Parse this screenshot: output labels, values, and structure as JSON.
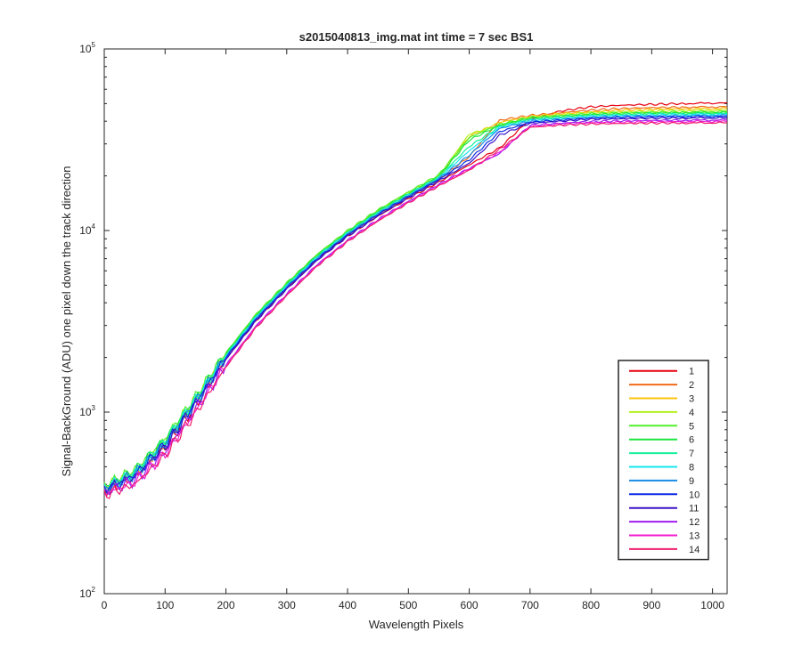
{
  "chart_data": {
    "type": "line",
    "title": "s2015040813_img.mat int time = 7 sec   BS1",
    "xlabel": "Wavelength Pixels",
    "ylabel": "Signal-BackGround (ADU) one pixel down the track direction",
    "xlim": [
      0,
      1024
    ],
    "ylim": [
      100,
      100000
    ],
    "yscale": "log",
    "grid": false,
    "legend_position": "bottom-right",
    "x_ticks": [
      "0",
      "100",
      "200",
      "300",
      "400",
      "500",
      "600",
      "700",
      "800",
      "900",
      "1000"
    ],
    "x_tick_values": [
      0,
      100,
      200,
      300,
      400,
      500,
      600,
      700,
      800,
      900,
      1000
    ],
    "y_ticks": [
      {
        "base": "10",
        "exp": "2",
        "value": 100
      },
      {
        "base": "10",
        "exp": "3",
        "value": 1000
      },
      {
        "base": "10",
        "exp": "4",
        "value": 10000
      },
      {
        "base": "10",
        "exp": "5",
        "value": 100000
      }
    ],
    "x": [
      0,
      50,
      100,
      150,
      200,
      250,
      300,
      350,
      400,
      450,
      500,
      550,
      600,
      650,
      700,
      750,
      800,
      850,
      900,
      950,
      1024
    ],
    "series": [
      {
        "name": "1",
        "color": "#e6000f",
        "values": [
          370,
          440,
          640,
          1100,
          1950,
          3200,
          4800,
          6900,
          9300,
          12000,
          15000,
          18500,
          23000,
          28500,
          41000,
          45500,
          48000,
          49000,
          49500,
          50000,
          50500
        ]
      },
      {
        "name": "2",
        "color": "#f06c1a",
        "values": [
          375,
          450,
          660,
          1130,
          2000,
          3300,
          4900,
          7050,
          9500,
          12300,
          15400,
          19100,
          25500,
          40500,
          43000,
          44500,
          46000,
          47000,
          47500,
          47800,
          48000
        ]
      },
      {
        "name": "3",
        "color": "#fac30c",
        "values": [
          380,
          460,
          680,
          1160,
          2050,
          3380,
          5000,
          7200,
          9700,
          12600,
          15800,
          19600,
          33000,
          39500,
          42500,
          44000,
          45000,
          46000,
          46500,
          46800,
          47000
        ]
      },
      {
        "name": "4",
        "color": "#b5f01f",
        "values": [
          385,
          470,
          700,
          1190,
          2100,
          3450,
          5100,
          7350,
          9900,
          12900,
          16200,
          20000,
          34000,
          38000,
          42000,
          43500,
          44500,
          45000,
          45500,
          45800,
          46000
        ]
      },
      {
        "name": "5",
        "color": "#52f02a",
        "values": [
          390,
          475,
          710,
          1200,
          2120,
          3480,
          5150,
          7400,
          10000,
          13000,
          16300,
          20300,
          32500,
          38500,
          42000,
          43000,
          44000,
          44500,
          44800,
          45000,
          45200
        ]
      },
      {
        "name": "6",
        "color": "#1ae63d",
        "values": [
          385,
          470,
          700,
          1185,
          2090,
          3430,
          5080,
          7300,
          9850,
          12800,
          16000,
          19900,
          31500,
          38000,
          41500,
          42500,
          43500,
          44000,
          44300,
          44500,
          44600
        ]
      },
      {
        "name": "7",
        "color": "#14f09c",
        "values": [
          380,
          465,
          690,
          1170,
          2060,
          3390,
          5020,
          7220,
          9750,
          12650,
          15850,
          19700,
          29000,
          37500,
          41000,
          42000,
          43000,
          43500,
          43800,
          44000,
          44100
        ]
      },
      {
        "name": "8",
        "color": "#14e6f0",
        "values": [
          378,
          460,
          680,
          1155,
          2040,
          3350,
          4960,
          7140,
          9650,
          12500,
          15700,
          19500,
          27500,
          37000,
          40500,
          41500,
          42500,
          43000,
          43200,
          43400,
          43500
        ]
      },
      {
        "name": "9",
        "color": "#1a8ce6",
        "values": [
          375,
          455,
          670,
          1140,
          2010,
          3300,
          4900,
          7050,
          9550,
          12380,
          15550,
          19300,
          26000,
          36500,
          40000,
          41000,
          42000,
          42500,
          42700,
          42900,
          43000
        ]
      },
      {
        "name": "10",
        "color": "#0a2ae6",
        "values": [
          372,
          450,
          660,
          1125,
          1990,
          3260,
          4840,
          6970,
          9450,
          12250,
          15400,
          19100,
          24500,
          35000,
          39500,
          40500,
          41500,
          42000,
          42200,
          42300,
          42400
        ]
      },
      {
        "name": "11",
        "color": "#3c14c8",
        "values": [
          368,
          440,
          645,
          1100,
          1950,
          3200,
          4750,
          6850,
          9300,
          12050,
          15150,
          18800,
          23500,
          33500,
          39000,
          40000,
          41000,
          41300,
          41500,
          41600,
          41700
        ]
      },
      {
        "name": "12",
        "color": "#a01ef0",
        "values": [
          360,
          420,
          600,
          1030,
          1820,
          3000,
          4480,
          6500,
          8850,
          11500,
          14500,
          18000,
          22000,
          26500,
          38000,
          39000,
          39800,
          40200,
          40400,
          40500,
          40600
        ]
      },
      {
        "name": "13",
        "color": "#f01ed2",
        "values": [
          355,
          410,
          590,
          1010,
          1800,
          2970,
          4430,
          6430,
          8760,
          11380,
          14350,
          17800,
          21800,
          27000,
          37500,
          38500,
          39200,
          39500,
          39700,
          39800,
          39900
        ]
      },
      {
        "name": "14",
        "color": "#f01e6e",
        "values": [
          350,
          400,
          580,
          990,
          1770,
          2930,
          4380,
          6360,
          8680,
          11280,
          14200,
          17600,
          21500,
          28000,
          37000,
          38000,
          38600,
          38900,
          39000,
          39100,
          39200
        ]
      }
    ]
  }
}
